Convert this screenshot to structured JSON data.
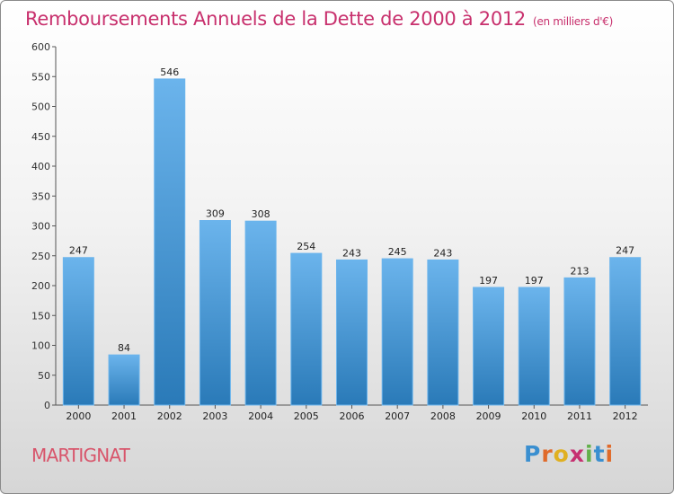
{
  "header": {
    "title": "Remboursements Annuels de la Dette de 2000 à 2012",
    "subtitle": "(en milliers d'€)"
  },
  "footer": {
    "commune": "MARTIGNAT",
    "logo_letters": [
      "P",
      "r",
      "o",
      "x",
      "i",
      "t",
      "i"
    ],
    "logo_colors": [
      "#3a8fd0",
      "#e06a2a",
      "#e0b020",
      "#c63070",
      "#62b04a",
      "#3a8fd0",
      "#e06a2a"
    ]
  },
  "colors": {
    "bar": "#4a9ad8",
    "bar_light": "#6bb4ec",
    "bar_dark": "#2a7ab8",
    "title": "#c8306d"
  },
  "chart_data": {
    "type": "bar",
    "title": "Remboursements Annuels de la Dette de 2000 à 2012",
    "subtitle": "(en milliers d'€)",
    "categories": [
      "2000",
      "2001",
      "2002",
      "2003",
      "2004",
      "2005",
      "2006",
      "2007",
      "2008",
      "2009",
      "2010",
      "2011",
      "2012"
    ],
    "values": [
      247,
      84,
      546,
      309,
      308,
      254,
      243,
      245,
      243,
      197,
      197,
      213,
      247
    ],
    "ylim": [
      0,
      600
    ],
    "yticks": [
      0,
      50,
      100,
      150,
      200,
      250,
      300,
      350,
      400,
      450,
      500,
      550,
      600
    ],
    "grid": false,
    "legend": "none"
  }
}
